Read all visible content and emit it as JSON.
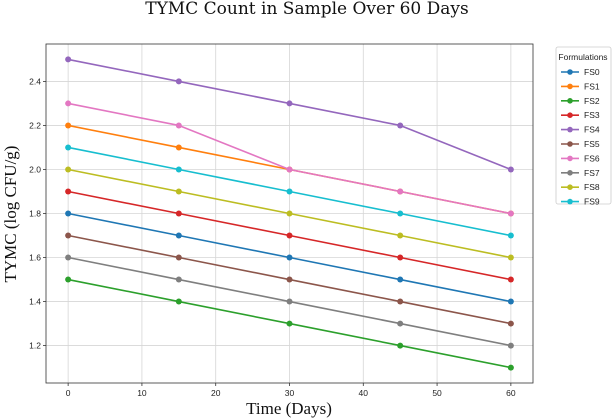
{
  "chart_data": {
    "type": "line",
    "title": "TYMC Count in Sample Over 60 Days",
    "xlabel": "Time (Days)",
    "ylabel": "TYMC (log CFU/g)",
    "xlim": [
      -3,
      63
    ],
    "ylim": [
      1.03,
      2.57
    ],
    "x_ticks": [
      0,
      10,
      20,
      30,
      40,
      50,
      60
    ],
    "y_ticks": [
      1.2,
      1.4,
      1.6,
      1.8,
      2.0,
      2.2,
      2.4
    ],
    "grid": true,
    "legend_title": "Formulations",
    "legend_position": "right, outside",
    "x": [
      0,
      15,
      30,
      45,
      60
    ],
    "series": [
      {
        "name": "FS0",
        "color": "#1f77b4",
        "values": [
          1.8,
          1.7,
          1.6,
          1.5,
          1.4
        ]
      },
      {
        "name": "FS1",
        "color": "#ff7f0e",
        "values": [
          2.2,
          2.1,
          2.0,
          1.9,
          1.8
        ]
      },
      {
        "name": "FS2",
        "color": "#2ca02c",
        "values": [
          1.5,
          1.4,
          1.3,
          1.2,
          1.1
        ]
      },
      {
        "name": "FS3",
        "color": "#d62728",
        "values": [
          1.9,
          1.8,
          1.7,
          1.6,
          1.5
        ]
      },
      {
        "name": "FS4",
        "color": "#9467bd",
        "values": [
          2.5,
          2.4,
          2.3,
          2.2,
          2.0
        ]
      },
      {
        "name": "FS5",
        "color": "#8c564b",
        "values": [
          1.7,
          1.6,
          1.5,
          1.4,
          1.3
        ]
      },
      {
        "name": "FS6",
        "color": "#e377c2",
        "values": [
          2.3,
          2.2,
          2.0,
          1.9,
          1.8
        ]
      },
      {
        "name": "FS7",
        "color": "#7f7f7f",
        "values": [
          1.6,
          1.5,
          1.4,
          1.3,
          1.2
        ]
      },
      {
        "name": "FS8",
        "color": "#bcbd22",
        "values": [
          2.0,
          1.9,
          1.8,
          1.7,
          1.6
        ]
      },
      {
        "name": "FS9",
        "color": "#17becf",
        "values": [
          2.1,
          2.0,
          1.9,
          1.8,
          1.7
        ]
      }
    ]
  }
}
